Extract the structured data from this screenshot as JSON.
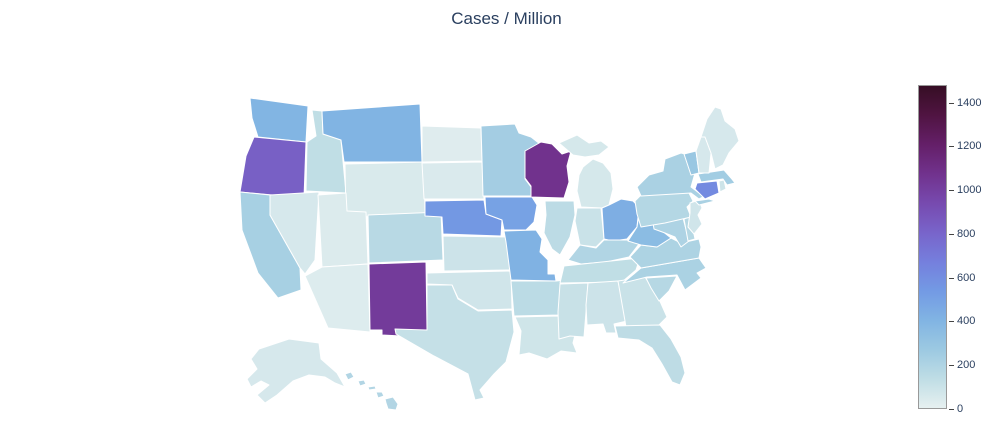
{
  "chart_data": {
    "type": "choropleth",
    "title": "Cases / Million",
    "map_scope": "usa-albers",
    "legend_position": "right",
    "colorscale_name": "dense",
    "colorscale": [
      [
        0.0,
        "#e6f0f0"
      ],
      [
        0.0909,
        "#bfdde5"
      ],
      [
        0.1818,
        "#9cc9e2"
      ],
      [
        0.2727,
        "#81b4e3"
      ],
      [
        0.3636,
        "#739ae4"
      ],
      [
        0.4545,
        "#757fdd"
      ],
      [
        0.5454,
        "#7864ca"
      ],
      [
        0.6363,
        "#774aaf"
      ],
      [
        0.7272,
        "#71328d"
      ],
      [
        0.8181,
        "#641f68"
      ],
      [
        0.909,
        "#501442"
      ],
      [
        1.0,
        "#360e24"
      ]
    ],
    "zmin": 0,
    "zmax": 1480,
    "colorbar": {
      "ticks": [
        0,
        200,
        400,
        600,
        800,
        1000,
        1200,
        1400
      ]
    },
    "states": [
      {
        "code": "AL",
        "name": "Alabama",
        "value": 90
      },
      {
        "code": "AK",
        "name": "Alaska",
        "value": 55
      },
      {
        "code": "AZ",
        "name": "Arizona",
        "value": 30
      },
      {
        "code": "AR",
        "name": "Arkansas",
        "value": 150
      },
      {
        "code": "CA",
        "name": "California",
        "value": 225
      },
      {
        "code": "CO",
        "name": "Colorado",
        "value": 160
      },
      {
        "code": "CT",
        "name": "Connecticut",
        "value": 620
      },
      {
        "code": "DE",
        "name": "Delaware",
        "value": 170
      },
      {
        "code": "FL",
        "name": "Florida",
        "value": 140
      },
      {
        "code": "GA",
        "name": "Georgia",
        "value": 100
      },
      {
        "code": "HI",
        "name": "Hawaii",
        "value": 185
      },
      {
        "code": "ID",
        "name": "Idaho",
        "value": 130
      },
      {
        "code": "IL",
        "name": "Illinois",
        "value": 145
      },
      {
        "code": "IN",
        "name": "Indiana",
        "value": 100
      },
      {
        "code": "IA",
        "name": "Iowa",
        "value": 495
      },
      {
        "code": "KS",
        "name": "Kansas",
        "value": 90
      },
      {
        "code": "KY",
        "name": "Kentucky",
        "value": 190
      },
      {
        "code": "LA",
        "name": "Louisiana",
        "value": 80
      },
      {
        "code": "ME",
        "name": "Maine",
        "value": 55
      },
      {
        "code": "MD",
        "name": "Maryland",
        "value": 200
      },
      {
        "code": "MA",
        "name": "Massachusetts",
        "value": 245
      },
      {
        "code": "MI",
        "name": "Michigan",
        "value": 60
      },
      {
        "code": "MN",
        "name": "Minnesota",
        "value": 240
      },
      {
        "code": "MS",
        "name": "Mississippi",
        "value": 105
      },
      {
        "code": "MO",
        "name": "Missouri",
        "value": 415
      },
      {
        "code": "MT",
        "name": "Montana",
        "value": 405
      },
      {
        "code": "NE",
        "name": "Nebraska",
        "value": 550
      },
      {
        "code": "NV",
        "name": "Nevada",
        "value": 55
      },
      {
        "code": "NH",
        "name": "New Hampshire",
        "value": 55
      },
      {
        "code": "NJ",
        "name": "New Jersey",
        "value": 75
      },
      {
        "code": "NM",
        "name": "New Mexico",
        "value": 1025
      },
      {
        "code": "NY",
        "name": "New York",
        "value": 215
      },
      {
        "code": "NC",
        "name": "North Carolina",
        "value": 210
      },
      {
        "code": "ND",
        "name": "North Dakota",
        "value": 25
      },
      {
        "code": "OH",
        "name": "Ohio",
        "value": 435
      },
      {
        "code": "OK",
        "name": "Oklahoma",
        "value": 75
      },
      {
        "code": "OR",
        "name": "Oregon",
        "value": 830
      },
      {
        "code": "PA",
        "name": "Pennsylvania",
        "value": 175
      },
      {
        "code": "RI",
        "name": "Rhode Island",
        "value": 85
      },
      {
        "code": "SC",
        "name": "South Carolina",
        "value": 170
      },
      {
        "code": "SD",
        "name": "South Dakota",
        "value": 40
      },
      {
        "code": "TN",
        "name": "Tennessee",
        "value": 130
      },
      {
        "code": "TX",
        "name": "Texas",
        "value": 115
      },
      {
        "code": "UT",
        "name": "Utah",
        "value": 35
      },
      {
        "code": "VT",
        "name": "Vermont",
        "value": 285
      },
      {
        "code": "VA",
        "name": "Virginia",
        "value": 205
      },
      {
        "code": "WA",
        "name": "Washington",
        "value": 400
      },
      {
        "code": "WV",
        "name": "West Virginia",
        "value": 355
      },
      {
        "code": "WI",
        "name": "Wisconsin",
        "value": 1075
      },
      {
        "code": "WY",
        "name": "Wyoming",
        "value": 45
      }
    ]
  }
}
